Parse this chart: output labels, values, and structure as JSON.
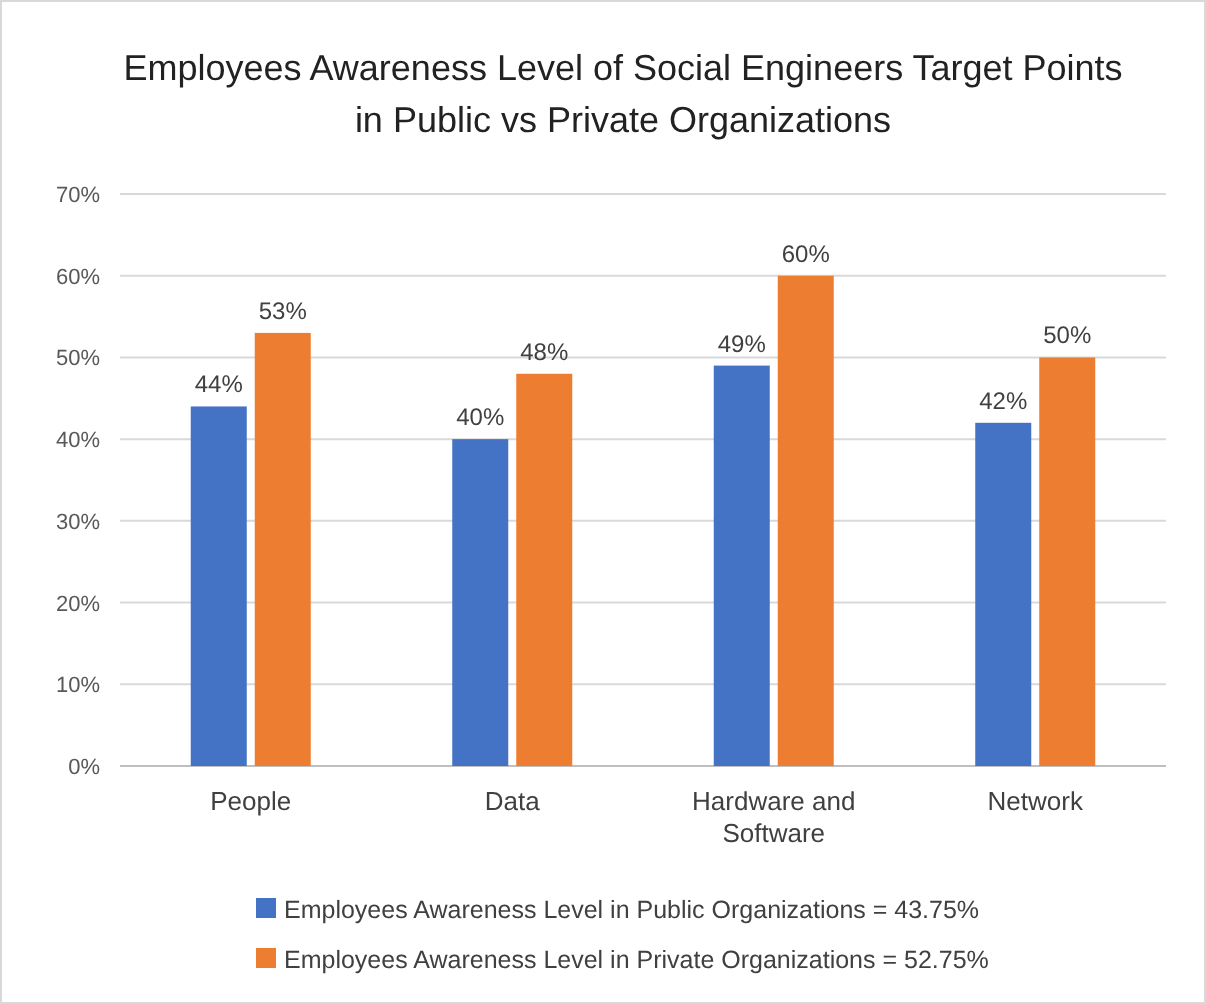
{
  "chart_data": {
    "type": "bar",
    "title": "Employees Awareness Level of Social Engineers Target Points in Public vs Private Organizations",
    "categories": [
      "People",
      "Data",
      "Hardware and Software",
      "Network"
    ],
    "series": [
      {
        "name": "Employees Awareness Level in Public Organizations = 43.75%",
        "color": "#4472c4",
        "values": [
          44,
          40,
          49,
          42
        ],
        "value_labels": [
          "44%",
          "40%",
          "49%",
          "42%"
        ]
      },
      {
        "name": "Employees Awareness Level in Private Organizations = 52.75%",
        "color": "#ed7d31",
        "values": [
          53,
          48,
          60,
          50
        ],
        "value_labels": [
          "53%",
          "48%",
          "60%",
          "50%"
        ]
      }
    ],
    "ylim": [
      0,
      70
    ],
    "yticks": [
      {
        "value": 0,
        "label": "0%"
      },
      {
        "value": 10,
        "label": "10%"
      },
      {
        "value": 20,
        "label": "20%"
      },
      {
        "value": 30,
        "label": "30%"
      },
      {
        "value": 40,
        "label": "40%"
      },
      {
        "value": 50,
        "label": "50%"
      },
      {
        "value": 60,
        "label": "60%"
      },
      {
        "value": 70,
        "label": "70%"
      }
    ],
    "grid": "y",
    "legend": "bottom"
  }
}
